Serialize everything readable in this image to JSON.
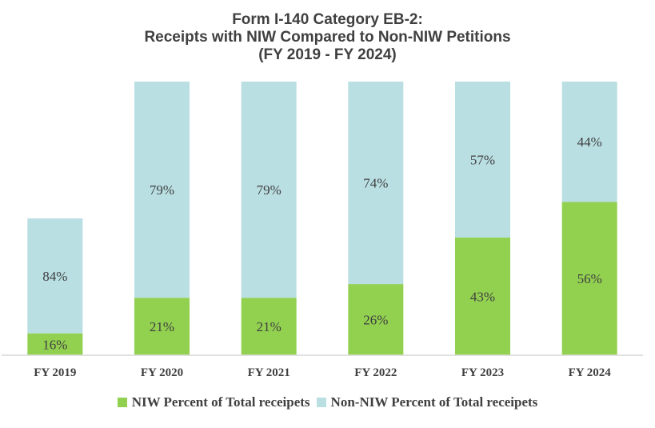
{
  "chart_data": {
    "type": "bar",
    "stacked": true,
    "title": "Form I-140 Category EB-2:",
    "subtitle_lines": [
      "Receipts with NIW Compared to Non-NIW Petitions",
      "(FY 2019 - FY 2024)"
    ],
    "xlabel": "",
    "ylabel": "",
    "grid": false,
    "legend_position": "bottom",
    "categories": [
      "FY 2019",
      "FY 2020",
      "FY 2021",
      "FY 2022",
      "FY 2023",
      "FY 2024"
    ],
    "relative_total": [
      0.5,
      1,
      1,
      1,
      1,
      1
    ],
    "series": [
      {
        "name": "NIW Percent of Total receipets",
        "color": "#92D050",
        "values": [
          16,
          21,
          21,
          26,
          43,
          56
        ],
        "labels": [
          "16%",
          "21%",
          "21%",
          "26%",
          "43%",
          "56%"
        ]
      },
      {
        "name": "Non-NIW Percent of Total receipets",
        "color": "#B9DFE3",
        "values": [
          84,
          79,
          79,
          74,
          57,
          44
        ],
        "labels": [
          "84%",
          "79%",
          "79%",
          "74%",
          "57%",
          "44%"
        ]
      }
    ]
  }
}
